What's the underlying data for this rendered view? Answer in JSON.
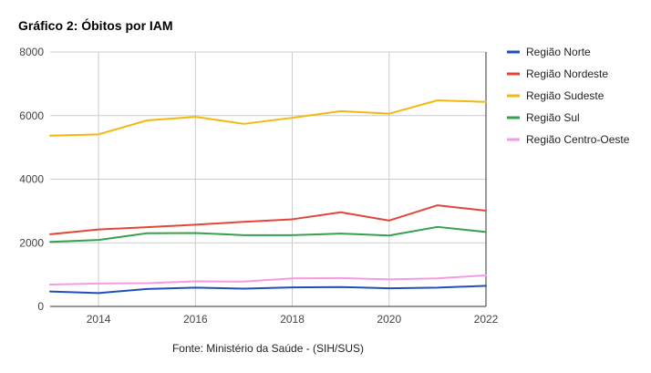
{
  "chart_data": {
    "type": "line",
    "title": "Gráfico 2: Óbitos por IAM",
    "caption": "Fonte: Ministério da Saúde - (SIH/SUS)",
    "xlabel": "",
    "ylabel": "",
    "x": [
      2013,
      2014,
      2015,
      2016,
      2017,
      2018,
      2019,
      2020,
      2021,
      2022
    ],
    "x_ticks": [
      "2014",
      "2016",
      "2018",
      "2020",
      "2022"
    ],
    "x_tick_values": [
      2014,
      2016,
      2018,
      2020,
      2022
    ],
    "y_ticks": [
      "0",
      "2000",
      "4000",
      "6000",
      "8000"
    ],
    "y_tick_values": [
      0,
      2000,
      4000,
      6000,
      8000
    ],
    "xlim": [
      2013,
      2022
    ],
    "ylim": [
      0,
      8000
    ],
    "grid": true,
    "legend_position": "right",
    "series": [
      {
        "name": "Região Norte",
        "color": "#1f4fbf",
        "values": [
          470,
          420,
          550,
          590,
          560,
          600,
          610,
          570,
          590,
          650
        ]
      },
      {
        "name": "Região Nordeste",
        "color": "#e0463a",
        "values": [
          2270,
          2420,
          2490,
          2570,
          2660,
          2740,
          2960,
          2700,
          3180,
          3010
        ]
      },
      {
        "name": "Região Sudeste",
        "color": "#f2b90f",
        "values": [
          5370,
          5410,
          5850,
          5960,
          5740,
          5930,
          6140,
          6060,
          6480,
          6430
        ]
      },
      {
        "name": "Região Sul",
        "color": "#37a04d",
        "values": [
          2030,
          2090,
          2300,
          2310,
          2240,
          2240,
          2290,
          2230,
          2500,
          2340
        ]
      },
      {
        "name": "Região Centro-Oeste",
        "color": "#f79ae5",
        "values": [
          690,
          720,
          730,
          790,
          780,
          880,
          890,
          850,
          880,
          980
        ]
      }
    ]
  }
}
